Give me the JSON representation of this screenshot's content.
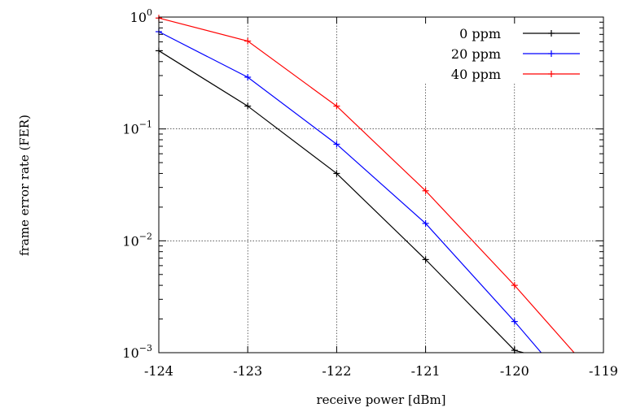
{
  "chart_data": {
    "type": "line",
    "xlabel": "receive power [dBm]",
    "ylabel": "frame error rate (FER)",
    "x_scale": "linear",
    "y_scale": "log",
    "xlim": [
      -124,
      -119
    ],
    "ylim": [
      0.001,
      1
    ],
    "x_ticks": [
      "-124",
      "-123",
      "-122",
      "-121",
      "-120",
      "-119"
    ],
    "x_tick_values": [
      -124,
      -123,
      -122,
      -121,
      -120,
      -119
    ],
    "y_tick_values": [
      1,
      0.1,
      0.01,
      0.001
    ],
    "y_tick_labels": [
      {
        "base": "10",
        "exp": "0"
      },
      {
        "base": "10",
        "exp": "−1"
      },
      {
        "base": "10",
        "exp": "−2"
      },
      {
        "base": "10",
        "exp": "−3"
      }
    ],
    "grid": true,
    "legend_position": "top-right",
    "series": [
      {
        "name": "0 ppm",
        "color": "#000000",
        "x": [
          -124,
          -123,
          -122,
          -121,
          -120,
          -119.9
        ],
        "y": [
          0.5,
          0.16,
          0.04,
          0.0068,
          0.00105,
          0.001
        ]
      },
      {
        "name": "20 ppm",
        "color": "#0000ff",
        "x": [
          -124,
          -123,
          -122,
          -121,
          -120,
          -119.7
        ],
        "y": [
          0.74,
          0.29,
          0.073,
          0.0143,
          0.0019,
          0.001
        ]
      },
      {
        "name": "40 ppm",
        "color": "#ff0000",
        "x": [
          -124,
          -123,
          -122,
          -121,
          -120,
          -119.33
        ],
        "y": [
          0.98,
          0.61,
          0.16,
          0.028,
          0.004,
          0.001
        ]
      }
    ]
  }
}
